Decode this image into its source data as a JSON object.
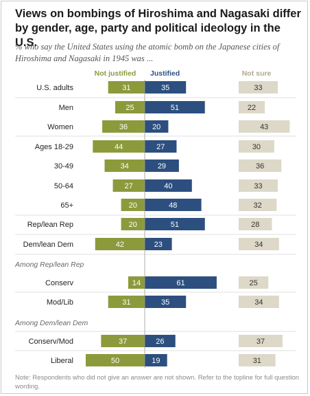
{
  "title": "Views on bombings of Hiroshima and Nagasaki differ by gender, age, party and political ideology in the U.S.",
  "subtitle": "% who say the United States using the atomic bomb on the Japanese cities of Hiroshima and Nagasaki in 1945 was ...",
  "note": "Note: Respondents who did not give an answer are not shown. Refer to the topline for full question wording.",
  "colors": {
    "not_justified": "#8c9a3c",
    "justified": "#2c4f7f",
    "not_sure": "#ddd8c8",
    "divider": "#c6c6c6"
  },
  "chart_data": {
    "type": "bar",
    "series": [
      {
        "name": "Not justified",
        "values": [
          31,
          25,
          36,
          44,
          34,
          27,
          20,
          20,
          42,
          14,
          31,
          37,
          50
        ]
      },
      {
        "name": "Justified",
        "values": [
          35,
          51,
          20,
          27,
          29,
          40,
          48,
          51,
          23,
          61,
          35,
          26,
          19
        ]
      },
      {
        "name": "Not sure",
        "values": [
          33,
          22,
          43,
          30,
          36,
          33,
          32,
          28,
          34,
          25,
          34,
          37,
          31
        ]
      }
    ],
    "categories": [
      "U.S. adults",
      "Men",
      "Women",
      "Ages 18-29",
      "30-49",
      "50-64",
      "65+",
      "Rep/lean Rep",
      "Dem/lean Dem",
      "Conserv",
      "Mod/Lib",
      "Conserv/Mod",
      "Liberal"
    ],
    "section_labels": [
      "Among Rep/lean Rep",
      "Among Dem/lean Dem"
    ]
  }
}
